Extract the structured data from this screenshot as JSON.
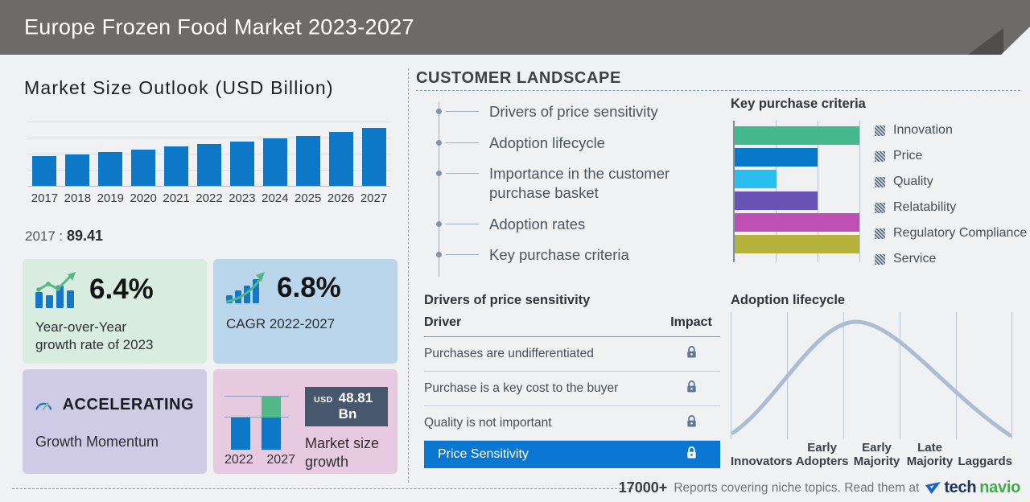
{
  "header": {
    "title": "Europe Frozen Food Market 2023-2027"
  },
  "market_outlook": {
    "title": "Market Size Outlook (USD Billion)",
    "base_note_year": "2017",
    "base_note_sep": " : ",
    "base_note_value": "89.41"
  },
  "stats_cards": {
    "yoy": {
      "value": "6.4%",
      "line1": "Year-over-Year",
      "line2": "growth rate of 2023"
    },
    "cagr": {
      "value": "6.8%",
      "label": "CAGR 2022-2027"
    },
    "momentum": {
      "value": "ACCELERATING",
      "label": "Growth Momentum"
    },
    "size_growth": {
      "badge_currency": "USD",
      "badge_value": "48.81 Bn",
      "label_line1": "Market size",
      "label_line2": "growth",
      "years": [
        "2022",
        "2027"
      ]
    }
  },
  "customer_landscape": {
    "title": "CUSTOMER LANDSCAPE",
    "items": [
      "Drivers of price sensitivity",
      "Adoption lifecycle",
      "Importance in the customer purchase basket",
      "Adoption rates",
      "Key purchase criteria"
    ]
  },
  "price_sensitivity": {
    "title": "Drivers of price sensitivity",
    "col_driver": "Driver",
    "col_impact": "Impact",
    "rows": [
      "Purchases are undifferentiated",
      "Purchase is a key cost to the buyer",
      "Quality is not important"
    ],
    "highlight": "Price Sensitivity"
  },
  "footer": {
    "count": "17000+",
    "blurb": "Reports covering niche topics. Read them at",
    "brand_part1": "tech",
    "brand_part2": "navio"
  },
  "colors": {
    "header_bg": "#6c6b69",
    "primary_bar_blue": "#0e78c8",
    "accent_green": "#52b885",
    "highlight_row_blue": "#0a78d2",
    "badge_slate": "#47586e",
    "card_green": "#d8ecdf",
    "card_blue": "#b9d6ea",
    "card_purple": "#cfcae6",
    "card_pink": "#e7cadf",
    "brand_navy": "#1c3263",
    "brand_green": "#3fae49"
  },
  "chart_data": [
    {
      "id": "market_size_outlook",
      "type": "bar",
      "title": "Market Size Outlook (USD Billion)",
      "categories": [
        "2017",
        "2018",
        "2019",
        "2020",
        "2021",
        "2022",
        "2023",
        "2024",
        "2025",
        "2026",
        "2027"
      ],
      "values": [
        89.41,
        95.1,
        101.9,
        109.7,
        119.2,
        127.3,
        135.4,
        143.9,
        152.6,
        163.9,
        176.1
      ],
      "labeled_point": {
        "category": "2017",
        "value": 89.41
      },
      "bar_color": "#0e78c8",
      "ylabel": "USD Billion",
      "ylim": [
        0,
        200
      ],
      "grid": true,
      "legend_position": "none"
    },
    {
      "id": "key_purchase_criteria",
      "type": "bar",
      "orientation": "horizontal",
      "title": "Key purchase criteria",
      "categories": [
        "Innovation",
        "Price",
        "Quality",
        "Relatability",
        "Regulatory Compliance",
        "Service"
      ],
      "values": [
        3,
        2,
        1,
        2,
        3,
        3
      ],
      "xlim": [
        0,
        3
      ],
      "colors": [
        "#45b98e",
        "#0878c8",
        "#29bdf0",
        "#6852b4",
        "#bf4fb2",
        "#b5b33c"
      ],
      "grid": true,
      "legend_position": "right"
    },
    {
      "id": "adoption_lifecycle",
      "type": "area",
      "title": "Adoption lifecycle",
      "categories": [
        "Innovators",
        "Early Adopters",
        "Early Majority",
        "Late Majority",
        "Laggards"
      ],
      "shape": "bell curve peaking within Early Majority",
      "curve_color": "#aabdd3",
      "grid": true,
      "legend_position": "none"
    },
    {
      "id": "market_size_growth",
      "type": "bar",
      "title": "Market size growth",
      "categories": [
        "2022",
        "2027"
      ],
      "series": [
        {
          "name": "2022 base",
          "values": [
            127.3,
            127.3
          ],
          "color": "#0e78c8"
        },
        {
          "name": "growth to 2027",
          "values": [
            0,
            48.81
          ],
          "color": "#52b885"
        }
      ],
      "badge": "USD 48.81 Bn"
    }
  ]
}
